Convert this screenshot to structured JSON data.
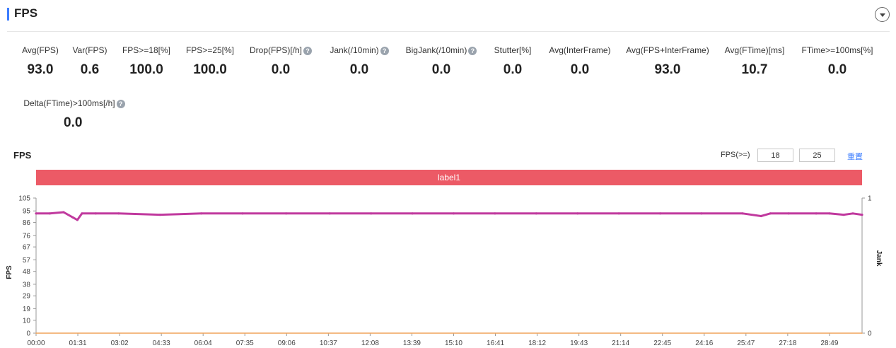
{
  "header": {
    "title": "FPS"
  },
  "metrics": [
    {
      "label": "Avg(FPS)",
      "value": "93.0"
    },
    {
      "label": "Var(FPS)",
      "value": "0.6"
    },
    {
      "label": "FPS>=18[%]",
      "value": "100.0"
    },
    {
      "label": "FPS>=25[%]",
      "value": "100.0"
    },
    {
      "label": "Drop(FPS)[/h]",
      "value": "0.0"
    },
    {
      "label": "Jank(/10min)",
      "value": "0.0"
    },
    {
      "label": "BigJank(/10min)",
      "value": "0.0"
    },
    {
      "label": "Stutter[%]",
      "value": "0.0"
    },
    {
      "label": "Avg(InterFrame)",
      "value": "0.0"
    },
    {
      "label": "Avg(FPS+InterFrame)",
      "value": "93.0"
    },
    {
      "label": "Avg(FTime)[ms]",
      "value": "10.7"
    },
    {
      "label": "FTime>=100ms[%]",
      "value": "0.0"
    },
    {
      "label": "Delta(FTime)>100ms[/h]",
      "value": "0.0"
    }
  ],
  "help_glyph": "?",
  "chart_section": {
    "title": "FPS",
    "threshold_label": "FPS(>=)",
    "threshold_low": "18",
    "threshold_high": "25",
    "reset_label": "重置",
    "band_label": "label1"
  },
  "colors": {
    "accent": "#3b7cff",
    "band": "#ec5a66",
    "fps_series": "#c0399e",
    "jank_series": "#f0a45a"
  },
  "chart_data": {
    "type": "line",
    "title": "",
    "xlabel": "",
    "ylabel": "FPS",
    "y2label": "Jank",
    "y_ticks": [
      "105",
      "95",
      "86",
      "76",
      "67",
      "57",
      "48",
      "38",
      "29",
      "19",
      "10",
      "0"
    ],
    "y_tick_values": [
      105,
      95,
      86,
      76,
      67,
      57,
      48,
      38,
      29,
      19,
      10,
      0
    ],
    "ylim": [
      0,
      105
    ],
    "y2_ticks": [
      "1",
      "0"
    ],
    "y2lim": [
      0,
      1
    ],
    "x_ticks": [
      "00:00",
      "01:31",
      "03:02",
      "04:33",
      "06:04",
      "07:35",
      "09:06",
      "10:37",
      "12:08",
      "13:39",
      "15:10",
      "16:41",
      "18:12",
      "19:43",
      "21:14",
      "22:45",
      "24:16",
      "25:47",
      "27:18",
      "28:49"
    ],
    "x_tick_seconds": [
      0,
      91,
      182,
      273,
      364,
      455,
      546,
      637,
      728,
      819,
      910,
      1001,
      1092,
      1183,
      1274,
      1365,
      1456,
      1547,
      1638,
      1729
    ],
    "xlim_seconds": [
      0,
      1800
    ],
    "grid": false,
    "series": [
      {
        "name": "FPS",
        "axis": "left",
        "x_seconds": [
          0,
          30,
          60,
          80,
          90,
          100,
          130,
          180,
          270,
          360,
          450,
          545,
          640,
          730,
          820,
          910,
          1000,
          1090,
          1180,
          1270,
          1360,
          1450,
          1540,
          1580,
          1600,
          1640,
          1700,
          1729,
          1760,
          1780,
          1800
        ],
        "values": [
          93,
          93,
          94,
          90,
          88,
          93,
          93,
          93,
          92,
          93,
          93,
          93,
          93,
          93,
          93,
          93,
          93,
          93,
          93,
          93,
          93,
          93,
          93,
          91,
          93,
          93,
          93,
          93,
          92,
          93,
          92
        ]
      },
      {
        "name": "Jank",
        "axis": "right",
        "x_seconds": [
          0,
          1800
        ],
        "values": [
          0,
          0
        ]
      }
    ]
  }
}
